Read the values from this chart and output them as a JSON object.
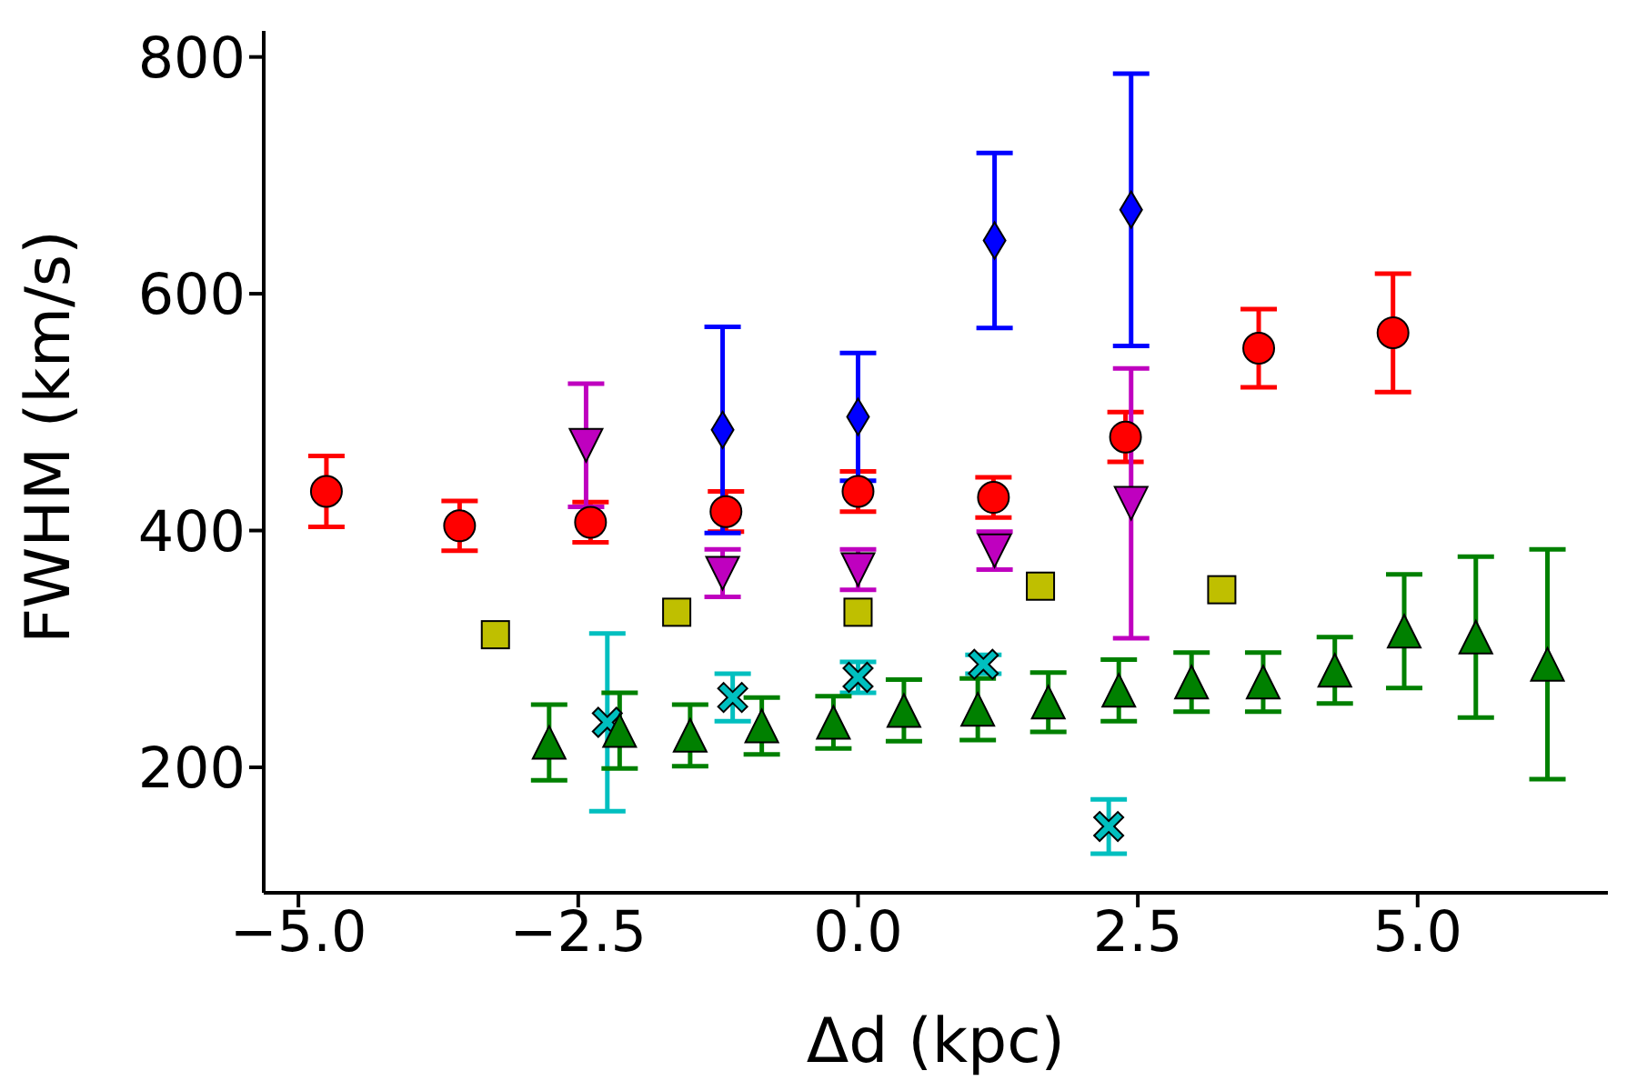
{
  "chart_data": {
    "type": "scatter",
    "xlabel": "Δd (kpc)",
    "ylabel": "FWHM (km/s)",
    "xlim": [
      -5.31,
      6.7
    ],
    "ylim": [
      94,
      822
    ],
    "xticks": [
      {
        "value": -5,
        "label": "−5.0"
      },
      {
        "value": -2.5,
        "label": "−2.5"
      },
      {
        "value": 0,
        "label": "0.0"
      },
      {
        "value": 2.5,
        "label": "2.5"
      },
      {
        "value": 5,
        "label": "5.0"
      }
    ],
    "yticks": [
      200,
      400,
      600,
      800
    ],
    "grid": false,
    "legend": false,
    "series": [
      {
        "color": "#ff0000",
        "marker": "circle",
        "x": [
          -4.75,
          -3.56,
          -2.39,
          -1.18,
          0.0,
          1.21,
          2.39,
          3.58,
          4.78
        ],
        "values": [
          433,
          404,
          407,
          416,
          433,
          428,
          479,
          554,
          567
        ],
        "errors": [
          30,
          21,
          17,
          17,
          17,
          17,
          21,
          33,
          50
        ]
      },
      {
        "color": "#0000ff",
        "marker": "diamond",
        "x": [
          -1.21,
          0.0,
          1.22,
          2.44
        ],
        "values": [
          485,
          496,
          645,
          671
        ],
        "errors": [
          87,
          54,
          74,
          115
        ]
      },
      {
        "color": "#bf00bf",
        "marker": "triangle_down",
        "x": [
          -2.43,
          -1.21,
          0.0,
          1.22,
          2.44
        ],
        "values": [
          472,
          364,
          367,
          383,
          423
        ],
        "errors": [
          52,
          20,
          17,
          16,
          114
        ]
      },
      {
        "color": "#bfbf00",
        "marker": "square",
        "x": [
          -3.24,
          -1.62,
          0.0,
          1.63,
          3.25
        ],
        "values": [
          312,
          331,
          331,
          353,
          350
        ]
      },
      {
        "color": "#00bfbf",
        "marker": "cross",
        "x": [
          -2.24,
          -1.12,
          0.0,
          1.12,
          2.24
        ],
        "values": [
          238,
          259,
          276,
          287,
          150
        ],
        "errors": [
          75,
          20,
          13,
          8,
          23
        ]
      },
      {
        "color": "#008000",
        "marker": "triangle",
        "x": [
          -2.76,
          -2.13,
          -1.5,
          -0.86,
          -0.22,
          0.41,
          1.07,
          1.7,
          2.33,
          2.98,
          3.62,
          4.26,
          4.88,
          5.52,
          6.16
        ],
        "values": [
          221,
          231,
          227,
          235,
          238,
          248,
          249,
          255,
          265,
          272,
          272,
          282,
          315,
          310,
          287
        ],
        "errors": [
          32,
          32,
          26,
          24,
          22,
          26,
          26,
          25,
          26,
          25,
          25,
          28,
          48,
          68,
          97
        ]
      }
    ]
  }
}
